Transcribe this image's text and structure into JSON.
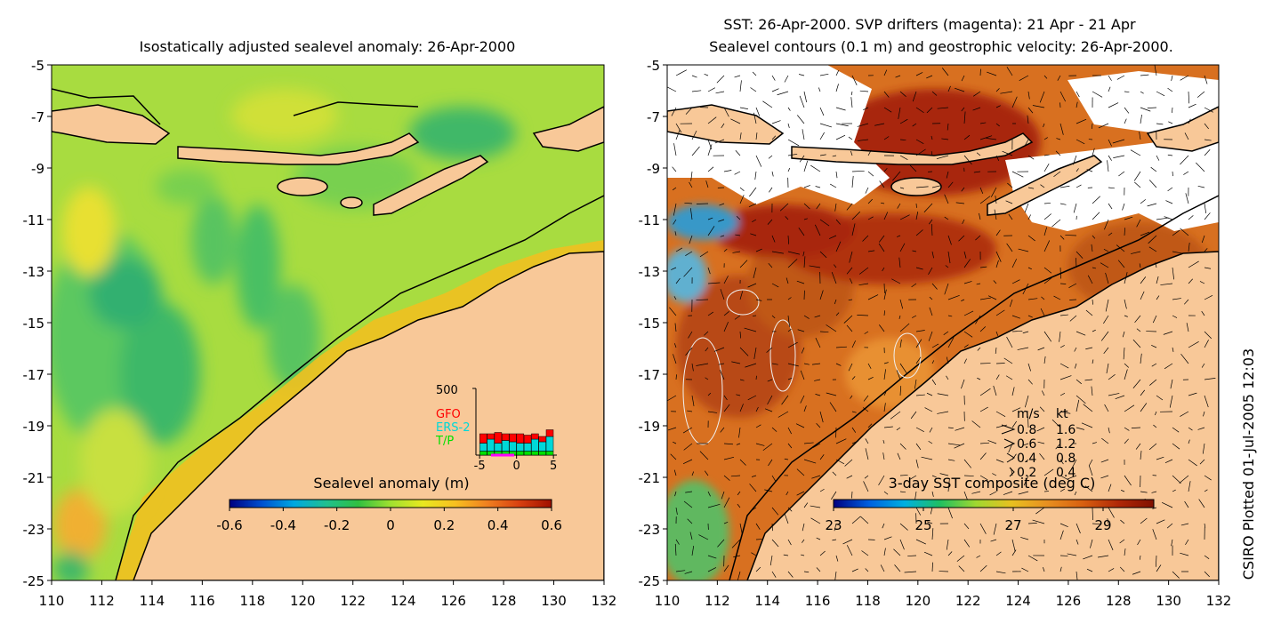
{
  "left_panel": {
    "title": "Isostatically adjusted sealevel anomaly: 26-Apr-2000",
    "colorbar_label": "Sealevel anomaly (m)",
    "colorbar_ticks": [
      "-0.6",
      "-0.4",
      "-0.2",
      "0",
      "0.2",
      "0.4",
      "0.6"
    ],
    "colorbar_colors": [
      "#000080",
      "#0050d0",
      "#00a8e0",
      "#20c090",
      "#30c040",
      "#a0e030",
      "#e8e820",
      "#f8c020",
      "#f08020",
      "#d84010",
      "#a01000"
    ],
    "inset": {
      "ytick": "500",
      "xticks": [
        "-5",
        "0",
        "5"
      ],
      "legend": [
        {
          "label": "GFO",
          "color": "#ff0000"
        },
        {
          "label": "ERS-2",
          "color": "#00d8d8"
        },
        {
          "label": "T/P",
          "color": "#00e000"
        }
      ],
      "bars": [
        {
          "x": -4.5,
          "tp": 30,
          "ers": 60,
          "gfo": 70
        },
        {
          "x": -3.5,
          "tp": 30,
          "ers": 90,
          "gfo": 40
        },
        {
          "x": -2.5,
          "tp": 30,
          "ers": 60,
          "gfo": 80
        },
        {
          "x": -1.5,
          "tp": 30,
          "ers": 80,
          "gfo": 50
        },
        {
          "x": -0.5,
          "tp": 30,
          "ers": 70,
          "gfo": 60
        },
        {
          "x": 0.5,
          "tp": 30,
          "ers": 60,
          "gfo": 70
        },
        {
          "x": 1.5,
          "tp": 30,
          "ers": 60,
          "gfo": 60
        },
        {
          "x": 2.5,
          "tp": 30,
          "ers": 90,
          "gfo": 40
        },
        {
          "x": 3.5,
          "tp": 30,
          "ers": 70,
          "gfo": 40
        },
        {
          "x": 4.5,
          "tp": 30,
          "ers": 110,
          "gfo": 50
        }
      ]
    }
  },
  "right_panel": {
    "title_line1": "SST: 26-Apr-2000. SVP drifters (magenta): 21 Apr - 21 Apr",
    "title_line2": "Sealevel contours (0.1 m) and geostrophic velocity: 26-Apr-2000.",
    "colorbar_label": "3-day SST composite (deg C)",
    "colorbar_ticks": [
      "23",
      "25",
      "27",
      "29"
    ],
    "colorbar_colors": [
      "#000080",
      "#0060e0",
      "#00b0e0",
      "#20c060",
      "#a0d830",
      "#e8c020",
      "#e89020",
      "#d86010",
      "#b02808",
      "#801000"
    ],
    "speed_legend": {
      "header_ms": "m/s",
      "header_kt": "kt",
      "rows": [
        {
          "ms": "0.8",
          "kt": "1.6"
        },
        {
          "ms": "0.6",
          "kt": "1.2"
        },
        {
          "ms": "0.4",
          "kt": "0.8"
        },
        {
          "ms": "0.2",
          "kt": "0.4"
        }
      ]
    }
  },
  "axes": {
    "lon_ticks": [
      "110",
      "112",
      "114",
      "116",
      "118",
      "120",
      "122",
      "124",
      "126",
      "128",
      "130",
      "132"
    ],
    "lat_ticks": [
      "-5",
      "-7",
      "-9",
      "-11",
      "-13",
      "-15",
      "-17",
      "-19",
      "-21",
      "-23",
      "-25"
    ]
  },
  "credit": "CSIRO Plotted 01-Jul-2005 12:03"
}
